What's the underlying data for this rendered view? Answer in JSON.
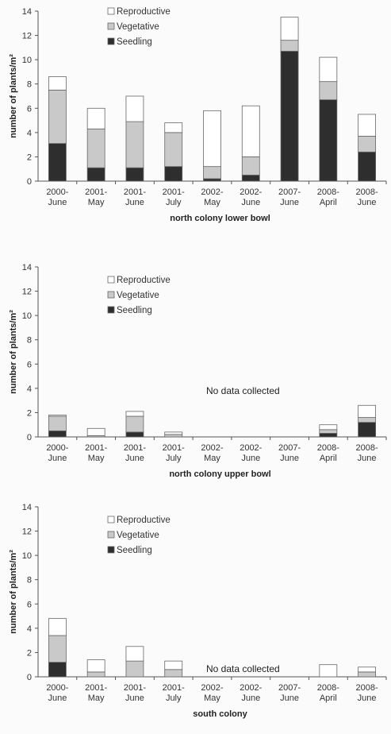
{
  "legend": [
    {
      "key": "Reproductive",
      "color": "#ffffff"
    },
    {
      "key": "Vegetative",
      "color": "#c9c9c9"
    },
    {
      "key": "Seedling",
      "color": "#2e2e2e"
    }
  ],
  "ylabel": "number of plants/m²",
  "categories": [
    "2000-June",
    "2001-May",
    "2001-June",
    "2001-July",
    "2002-May",
    "2002-June",
    "2007-June",
    "2008-April",
    "2008-June"
  ],
  "category_lines": [
    [
      "2000-",
      "June"
    ],
    [
      "2001-",
      "May"
    ],
    [
      "2001-",
      "June"
    ],
    [
      "2001-",
      "July"
    ],
    [
      "2002-",
      "May"
    ],
    [
      "2002-",
      "June"
    ],
    [
      "2007-",
      "June"
    ],
    [
      "2008-",
      "April"
    ],
    [
      "2008-",
      "June"
    ]
  ],
  "note": "No data collected",
  "chart_data": [
    {
      "type": "bar",
      "stacked": true,
      "xlabel": "north colony lower bowl",
      "ylabel": "number of plants/m²",
      "ylim": [
        0,
        14
      ],
      "yticks": [
        0,
        2,
        4,
        6,
        8,
        10,
        12,
        14
      ],
      "categories": [
        "2000-June",
        "2001-May",
        "2001-June",
        "2001-July",
        "2002-May",
        "2002-June",
        "2007-June",
        "2008-April",
        "2008-June"
      ],
      "series": [
        {
          "name": "Seedling",
          "values": [
            3.1,
            1.1,
            1.1,
            1.2,
            0.2,
            0.5,
            10.7,
            6.7,
            2.4
          ]
        },
        {
          "name": "Vegetative",
          "values": [
            4.4,
            3.2,
            3.8,
            2.8,
            1.0,
            1.5,
            0.9,
            1.5,
            1.3
          ]
        },
        {
          "name": "Reproductive",
          "values": [
            1.1,
            1.7,
            2.1,
            0.8,
            4.6,
            4.2,
            1.9,
            2.0,
            1.8
          ]
        }
      ],
      "note": "",
      "legend_position": "top-left"
    },
    {
      "type": "bar",
      "stacked": true,
      "xlabel": "north colony upper bowl",
      "ylabel": "number of plants/m²",
      "ylim": [
        0,
        14
      ],
      "yticks": [
        0,
        2,
        4,
        6,
        8,
        10,
        12,
        14
      ],
      "categories": [
        "2000-June",
        "2001-May",
        "2001-June",
        "2001-July",
        "2002-May",
        "2002-June",
        "2007-June",
        "2008-April",
        "2008-June"
      ],
      "series": [
        {
          "name": "Seedling",
          "values": [
            0.5,
            0.0,
            0.4,
            0.0,
            0,
            0,
            0,
            0.3,
            1.2
          ]
        },
        {
          "name": "Vegetative",
          "values": [
            1.2,
            0.1,
            1.3,
            0.2,
            0,
            0,
            0,
            0.3,
            0.4
          ]
        },
        {
          "name": "Reproductive",
          "values": [
            0.1,
            0.6,
            0.4,
            0.2,
            0,
            0,
            0,
            0.4,
            1.0
          ]
        }
      ],
      "note": "No data collected",
      "legend_position": "top-left"
    },
    {
      "type": "bar",
      "stacked": true,
      "xlabel": "south colony",
      "ylabel": "number of plants/m²",
      "ylim": [
        0,
        14
      ],
      "yticks": [
        0,
        2,
        4,
        6,
        8,
        10,
        12,
        14
      ],
      "categories": [
        "2000-June",
        "2001-May",
        "2001-June",
        "2001-July",
        "2002-May",
        "2002-June",
        "2007-June",
        "2008-April",
        "2008-June"
      ],
      "series": [
        {
          "name": "Seedling",
          "values": [
            1.2,
            0.0,
            0.0,
            0.0,
            0,
            0,
            0,
            0.0,
            0.0
          ]
        },
        {
          "name": "Vegetative",
          "values": [
            2.2,
            0.4,
            1.3,
            0.6,
            0,
            0,
            0,
            0.0,
            0.4
          ]
        },
        {
          "name": "Reproductive",
          "values": [
            1.4,
            1.0,
            1.2,
            0.7,
            0,
            0,
            0,
            1.0,
            0.4
          ]
        }
      ],
      "note": "No data collected",
      "legend_position": "top-left"
    }
  ]
}
